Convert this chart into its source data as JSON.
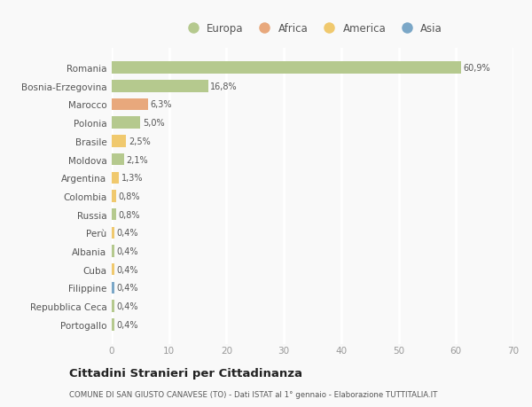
{
  "countries": [
    "Romania",
    "Bosnia-Erzegovina",
    "Marocco",
    "Polonia",
    "Brasile",
    "Moldova",
    "Argentina",
    "Colombia",
    "Russia",
    "Perù",
    "Albania",
    "Cuba",
    "Filippine",
    "Repubblica Ceca",
    "Portogallo"
  ],
  "values": [
    60.9,
    16.8,
    6.3,
    5.0,
    2.5,
    2.1,
    1.3,
    0.8,
    0.8,
    0.4,
    0.4,
    0.4,
    0.4,
    0.4,
    0.4
  ],
  "labels": [
    "60,9%",
    "16,8%",
    "6,3%",
    "5,0%",
    "2,5%",
    "2,1%",
    "1,3%",
    "0,8%",
    "0,8%",
    "0,4%",
    "0,4%",
    "0,4%",
    "0,4%",
    "0,4%",
    "0,4%"
  ],
  "colors": [
    "#b5c98e",
    "#b5c98e",
    "#e8a87c",
    "#b5c98e",
    "#f0c96e",
    "#b5c98e",
    "#f0c96e",
    "#f0c96e",
    "#b5c98e",
    "#f0c96e",
    "#b5c98e",
    "#f0c96e",
    "#7ba7c7",
    "#b5c98e",
    "#b5c98e"
  ],
  "legend": [
    {
      "label": "Europa",
      "color": "#b5c98e"
    },
    {
      "label": "Africa",
      "color": "#e8a87c"
    },
    {
      "label": "America",
      "color": "#f0c96e"
    },
    {
      "label": "Asia",
      "color": "#7ba7c7"
    }
  ],
  "xlim": [
    0,
    70
  ],
  "xticks": [
    0,
    10,
    20,
    30,
    40,
    50,
    60,
    70
  ],
  "title": "Cittadini Stranieri per Cittadinanza",
  "subtitle": "COMUNE DI SAN GIUSTO CANAVESE (TO) - Dati ISTAT al 1° gennaio - Elaborazione TUTTITALIA.IT",
  "background_color": "#f9f9f9",
  "grid_color": "#ffffff",
  "bar_height": 0.65
}
